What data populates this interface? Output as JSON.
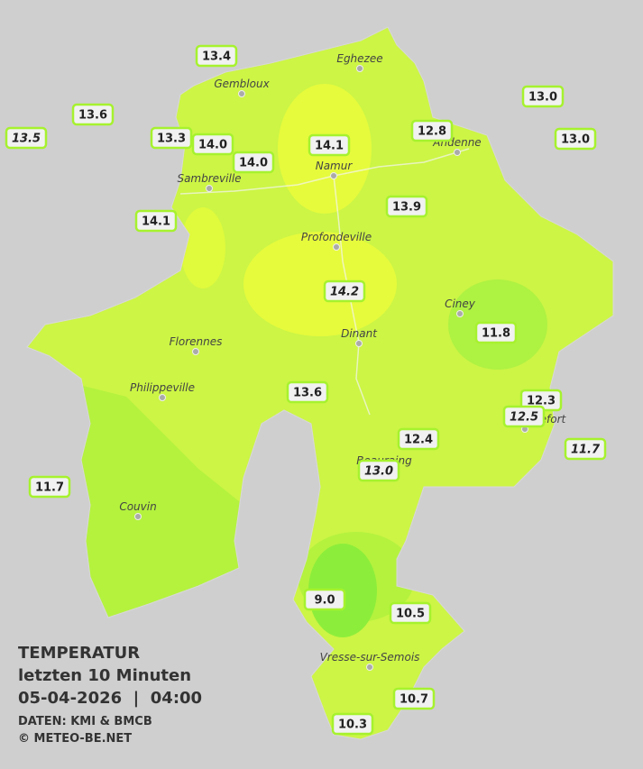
{
  "legend": {
    "title": "TEMPERATUR",
    "subtitle": "letzten 10 Minuten",
    "datetime": "05-04-2026  |  04:00",
    "source": "DATEN: KMI & BMCB",
    "copyright": "© METEO-BE.NET"
  },
  "places": [
    "Eghezee",
    "Gembloux",
    "Andenne",
    "Namur",
    "Sambreville",
    "Profondeville",
    "Ciney",
    "Dinant",
    "Florennes",
    "Philippeville",
    "Rochefort",
    "Beauraing",
    "Couvin",
    "Vresse-sur-Semois"
  ],
  "stations": [
    {
      "value": "13.4",
      "italic": false
    },
    {
      "value": "13.6",
      "italic": false
    },
    {
      "value": "13.5",
      "italic": true
    },
    {
      "value": "13.3",
      "italic": false
    },
    {
      "value": "14.0",
      "italic": false
    },
    {
      "value": "14.0",
      "italic": false
    },
    {
      "value": "14.1",
      "italic": false
    },
    {
      "value": "12.8",
      "italic": false
    },
    {
      "value": "13.0",
      "italic": false
    },
    {
      "value": "13.0",
      "italic": false
    },
    {
      "value": "13.9",
      "italic": false
    },
    {
      "value": "14.1",
      "italic": false
    },
    {
      "value": "14.2",
      "italic": true
    },
    {
      "value": "11.8",
      "italic": false
    },
    {
      "value": "13.6",
      "italic": false
    },
    {
      "value": "12.3",
      "italic": false
    },
    {
      "value": "12.5",
      "italic": true
    },
    {
      "value": "11.7",
      "italic": true
    },
    {
      "value": "12.4",
      "italic": false
    },
    {
      "value": "13.0",
      "italic": true
    },
    {
      "value": "11.7",
      "italic": false
    },
    {
      "value": "9.0",
      "italic": false
    },
    {
      "value": "10.5",
      "italic": false
    },
    {
      "value": "10.7",
      "italic": false
    },
    {
      "value": "10.3",
      "italic": false
    }
  ]
}
